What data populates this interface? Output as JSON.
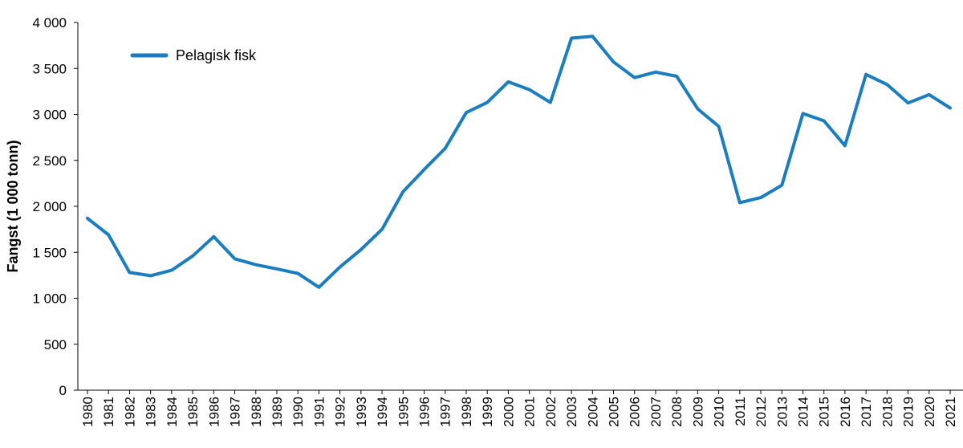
{
  "chart_data": {
    "type": "line",
    "title": "",
    "xlabel": "",
    "ylabel": "Fangst (1 000 tonn)",
    "ylim": [
      0,
      4000
    ],
    "yticks": [
      0,
      500,
      1000,
      1500,
      2000,
      2500,
      3000,
      3500,
      4000
    ],
    "ytick_labels": [
      "0",
      "500",
      "1 000",
      "1 500",
      "2 000",
      "2 500",
      "3 000",
      "3 500",
      "4 000"
    ],
    "grid": false,
    "legend_position": "top-left",
    "x": [
      "1980",
      "1981",
      "1982",
      "1983",
      "1984",
      "1985",
      "1986",
      "1987",
      "1988",
      "1989",
      "1990",
      "1991",
      "1992",
      "1993",
      "1994",
      "1995",
      "1996",
      "1997",
      "1998",
      "1999",
      "2000",
      "2001",
      "2002",
      "2003",
      "2004",
      "2005",
      "2006",
      "2007",
      "2008",
      "2009",
      "2010",
      "2011",
      "2012",
      "2013",
      "2014",
      "2015",
      "2016",
      "2017",
      "2018",
      "2019",
      "2020",
      "2021"
    ],
    "series": [
      {
        "name": "Pelagisk fisk",
        "color": "#1a7dbf",
        "values": [
          1870,
          1690,
          1280,
          1245,
          1305,
          1460,
          1670,
          1430,
          1365,
          1320,
          1270,
          1120,
          1340,
          1530,
          1750,
          2160,
          2400,
          2630,
          3020,
          3130,
          3355,
          3270,
          3130,
          3830,
          3850,
          3570,
          3400,
          3460,
          3415,
          3060,
          2870,
          2040,
          2095,
          2230,
          3010,
          2930,
          2660,
          3435,
          3325,
          3125,
          3215,
          3070
        ]
      }
    ]
  }
}
